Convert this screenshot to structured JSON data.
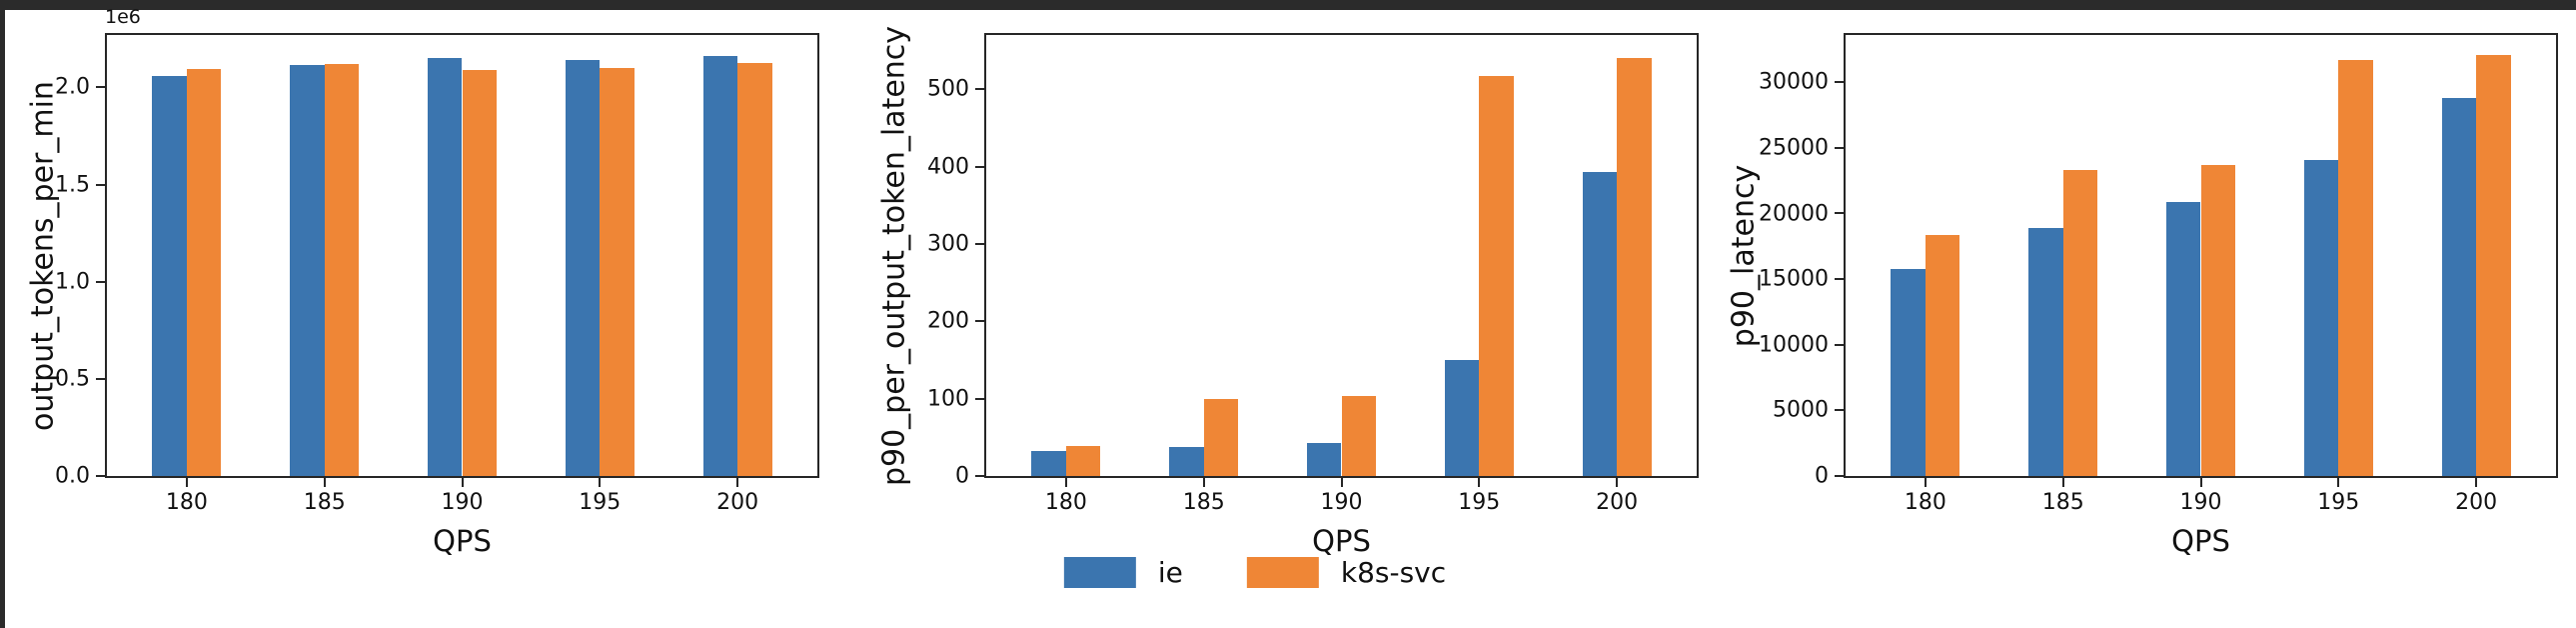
{
  "figure": {
    "background": "#ffffff",
    "window_frame_color": "#2b2b2b",
    "axis_color": "#262626",
    "series_colors": {
      "ie": "#3b75af",
      "k8s_svc": "#ef8636"
    },
    "legend": {
      "position": "bottom-center",
      "items": [
        {
          "label": "ie",
          "color": "#3b75af"
        },
        {
          "label": "k8s-svc",
          "color": "#ef8636"
        }
      ]
    }
  },
  "chart_data": [
    {
      "type": "bar",
      "title": "",
      "ylabel": "output_tokens_per_min",
      "xlabel": "QPS",
      "offset_text": "1e6",
      "categories": [
        "180",
        "185",
        "190",
        "195",
        "200"
      ],
      "series": [
        {
          "name": "ie",
          "color": "#3b75af",
          "values": [
            2060000,
            2115000,
            2150000,
            2140000,
            2160000
          ]
        },
        {
          "name": "k8s-svc",
          "color": "#ef8636",
          "values": [
            2095000,
            2120000,
            2090000,
            2100000,
            2125000
          ]
        }
      ],
      "ylim": [
        0,
        2270000
      ],
      "ytick_values": [
        0,
        500000,
        1000000,
        1500000,
        2000000
      ],
      "ytick_labels": [
        "0.0",
        "0.5",
        "1.0",
        "1.5",
        "2.0"
      ],
      "grid": false
    },
    {
      "type": "bar",
      "title": "",
      "ylabel": "p90_per_output_token_latency",
      "xlabel": "QPS",
      "offset_text": "",
      "categories": [
        "180",
        "185",
        "190",
        "195",
        "200"
      ],
      "series": [
        {
          "name": "ie",
          "color": "#3b75af",
          "values": [
            32,
            38,
            43,
            150,
            393
          ]
        },
        {
          "name": "k8s-svc",
          "color": "#ef8636",
          "values": [
            39,
            100,
            104,
            517,
            540
          ]
        }
      ],
      "ylim": [
        0,
        570
      ],
      "ytick_values": [
        0,
        100,
        200,
        300,
        400,
        500
      ],
      "ytick_labels": [
        "0",
        "100",
        "200",
        "300",
        "400",
        "500"
      ],
      "grid": false
    },
    {
      "type": "bar",
      "title": "",
      "ylabel": "p90_latency",
      "xlabel": "QPS",
      "offset_text": "",
      "categories": [
        "180",
        "185",
        "190",
        "195",
        "200"
      ],
      "series": [
        {
          "name": "ie",
          "color": "#3b75af",
          "values": [
            15800,
            18900,
            20900,
            24100,
            28800
          ]
        },
        {
          "name": "k8s-svc",
          "color": "#ef8636",
          "values": [
            18400,
            23300,
            23700,
            31700,
            32100
          ]
        }
      ],
      "ylim": [
        0,
        33600
      ],
      "ytick_values": [
        0,
        5000,
        10000,
        15000,
        20000,
        25000,
        30000
      ],
      "ytick_labels": [
        "0",
        "5000",
        "10000",
        "15000",
        "20000",
        "25000",
        "30000"
      ],
      "grid": false
    }
  ]
}
